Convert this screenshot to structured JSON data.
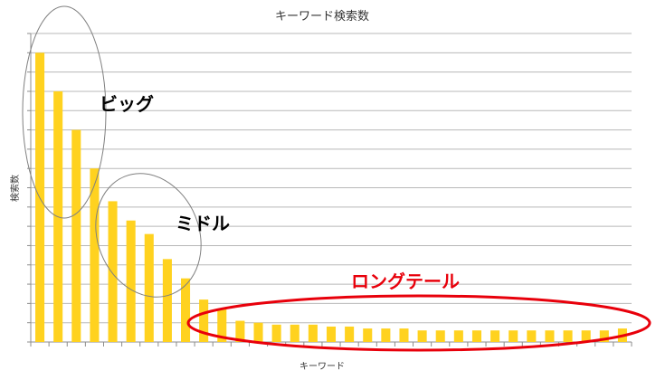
{
  "chart_data": {
    "type": "bar",
    "title": "キーワード検索数",
    "xlabel": "キーワード",
    "ylabel": "検索数",
    "ylim": [
      0,
      16
    ],
    "grid": true,
    "bar_color": "#FFD21F",
    "categories": [
      "1",
      "2",
      "3",
      "4",
      "5",
      "6",
      "7",
      "8",
      "9",
      "10",
      "11",
      "12",
      "13",
      "14",
      "15",
      "16",
      "17",
      "18",
      "19",
      "20",
      "21",
      "22",
      "23",
      "24",
      "25",
      "26",
      "27",
      "28",
      "29",
      "30",
      "31",
      "32",
      "33"
    ],
    "values": [
      15,
      13,
      11,
      9,
      7.3,
      6.3,
      5.6,
      4.3,
      3.3,
      2.2,
      1.7,
      1.1,
      1.0,
      0.9,
      0.9,
      0.9,
      0.8,
      0.8,
      0.7,
      0.7,
      0.7,
      0.6,
      0.6,
      0.6,
      0.6,
      0.6,
      0.6,
      0.6,
      0.6,
      0.6,
      0.6,
      0.6,
      0.7
    ],
    "annotations": [
      {
        "id": "big",
        "text": "ビッグ",
        "color": "#000000",
        "outline_color": "#808080"
      },
      {
        "id": "middle",
        "text": "ミドル",
        "color": "#000000",
        "outline_color": "#808080"
      },
      {
        "id": "longtail",
        "text": "ロングテール",
        "color": "#E8000B",
        "outline_color": "#E8000B"
      }
    ]
  }
}
